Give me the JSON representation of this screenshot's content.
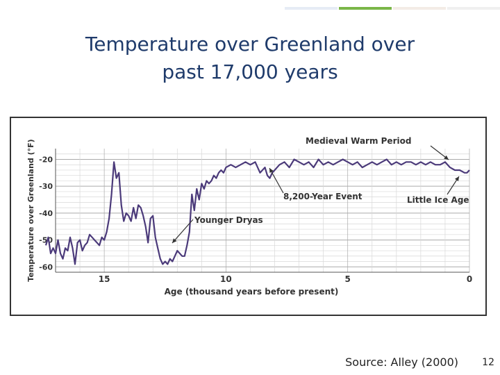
{
  "slide": {
    "title_line1": "Temperature over Greenland over",
    "title_line2": "past 17,000 years",
    "source": "Source: Alley (2000)",
    "page_number": "12",
    "accent_colors": [
      "#e6ecf5",
      "#7ab648",
      "#f3ece6",
      "#f0f0f0"
    ]
  },
  "chart_data": {
    "type": "line",
    "ylabel": "Temperature over Greenland (°F)",
    "xlabel": "Age (thousand years before present)",
    "x_reversed": true,
    "xlim": [
      17,
      0
    ],
    "ylim": [
      -62,
      -16
    ],
    "xticks": [
      15,
      10,
      5,
      0
    ],
    "yticks": [
      -20,
      -30,
      -40,
      -50,
      -60
    ],
    "grid": true,
    "line_color": "#4b3a7a",
    "series": [
      {
        "x": [
          17.4,
          17.3,
          17.2,
          17.1,
          17.0,
          16.9,
          16.8,
          16.7,
          16.6,
          16.5,
          16.4,
          16.3,
          16.2,
          16.1,
          16.0,
          15.9,
          15.8,
          15.7,
          15.6,
          15.5,
          15.4,
          15.3,
          15.2,
          15.1,
          15.0,
          14.9,
          14.8,
          14.7,
          14.6,
          14.5,
          14.4,
          14.3,
          14.2,
          14.1,
          14.0,
          13.9,
          13.8,
          13.7,
          13.6,
          13.5,
          13.4,
          13.3,
          13.2,
          13.1,
          13.0,
          12.9,
          12.8,
          12.7,
          12.6,
          12.5,
          12.4,
          12.3,
          12.2,
          12.1,
          12.0,
          11.9,
          11.8,
          11.7,
          11.6,
          11.5,
          11.4,
          11.3,
          11.2,
          11.1,
          11.0,
          10.9,
          10.8,
          10.7,
          10.6,
          10.5,
          10.4,
          10.3,
          10.2,
          10.1,
          10.0,
          9.8,
          9.6,
          9.4,
          9.2,
          9.0,
          8.8,
          8.6,
          8.4,
          8.3,
          8.2,
          8.1,
          8.0,
          7.8,
          7.6,
          7.4,
          7.2,
          7.0,
          6.8,
          6.6,
          6.4,
          6.2,
          6.0,
          5.8,
          5.6,
          5.4,
          5.2,
          5.0,
          4.8,
          4.6,
          4.4,
          4.2,
          4.0,
          3.8,
          3.6,
          3.4,
          3.2,
          3.0,
          2.8,
          2.6,
          2.4,
          2.2,
          2.0,
          1.8,
          1.6,
          1.4,
          1.2,
          1.0,
          0.8,
          0.6,
          0.4,
          0.2,
          0.1,
          0.0
        ],
        "y": [
          -52,
          -49,
          -55,
          -53,
          -55,
          -50,
          -55,
          -57,
          -53,
          -54,
          -49,
          -53,
          -59,
          -51,
          -50,
          -54,
          -52,
          -51,
          -48,
          -49,
          -50,
          -51,
          -52,
          -49,
          -50,
          -47,
          -42,
          -33,
          -21,
          -27,
          -25,
          -37,
          -43,
          -40,
          -41,
          -43,
          -38,
          -42,
          -37,
          -38,
          -41,
          -45,
          -51,
          -42,
          -41,
          -49,
          -53,
          -57,
          -59,
          -58,
          -59,
          -57,
          -58,
          -56,
          -54,
          -55,
          -56,
          -56,
          -52,
          -47,
          -33,
          -39,
          -31,
          -35,
          -29,
          -31,
          -28,
          -29,
          -28,
          -26,
          -27,
          -25,
          -24,
          -25,
          -23,
          -22,
          -23,
          -22,
          -21,
          -22,
          -21,
          -25,
          -23,
          -26,
          -27,
          -25,
          -24,
          -22,
          -21,
          -23,
          -20,
          -21,
          -22,
          -21,
          -23,
          -20,
          -22,
          -21,
          -22,
          -21,
          -20,
          -21,
          -22,
          -21,
          -23,
          -22,
          -21,
          -22,
          -21,
          -20,
          -22,
          -21,
          -22,
          -21,
          -21,
          -22,
          -21,
          -22,
          -21,
          -22,
          -22,
          -21,
          -23,
          -24,
          -24,
          -25,
          -25,
          -24
        ]
      }
    ],
    "annotations": [
      {
        "text": "Medieval Warm Period"
      },
      {
        "text": "8,200-Year Event"
      },
      {
        "text": "Younger Dryas"
      },
      {
        "text": "Little Ice Age"
      }
    ]
  }
}
